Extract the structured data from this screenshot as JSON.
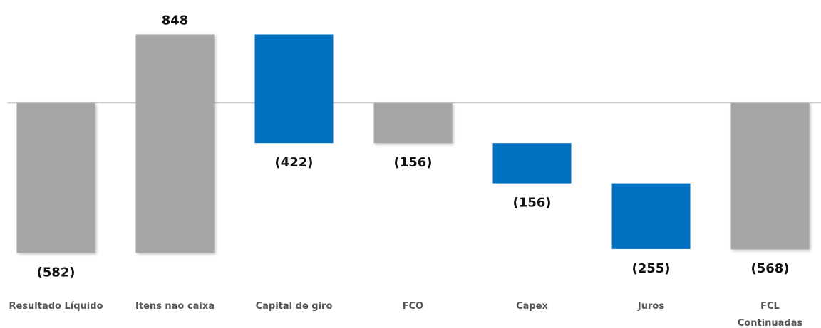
{
  "chart_data": {
    "type": "waterfall",
    "categories": [
      "Resultado Líquido",
      "Itens  não  caixa",
      "Capital de giro",
      "FCO",
      "Capex",
      "Juros",
      "FCL\nContinuadas"
    ],
    "values": [
      -582,
      848,
      -422,
      -156,
      -156,
      -255,
      -568
    ],
    "value_labels": [
      "(582)",
      "848",
      "(422)",
      "(156)",
      "(156)",
      "(255)",
      "(568)"
    ],
    "is_total": [
      false,
      false,
      false,
      true,
      false,
      false,
      true
    ],
    "colors": [
      "#a6a6a6",
      "#a6a6a6",
      "#0070c0",
      "#a6a6a6",
      "#0070c0",
      "#0070c0",
      "#a6a6a6"
    ],
    "ylim": [
      -700,
      400
    ]
  }
}
